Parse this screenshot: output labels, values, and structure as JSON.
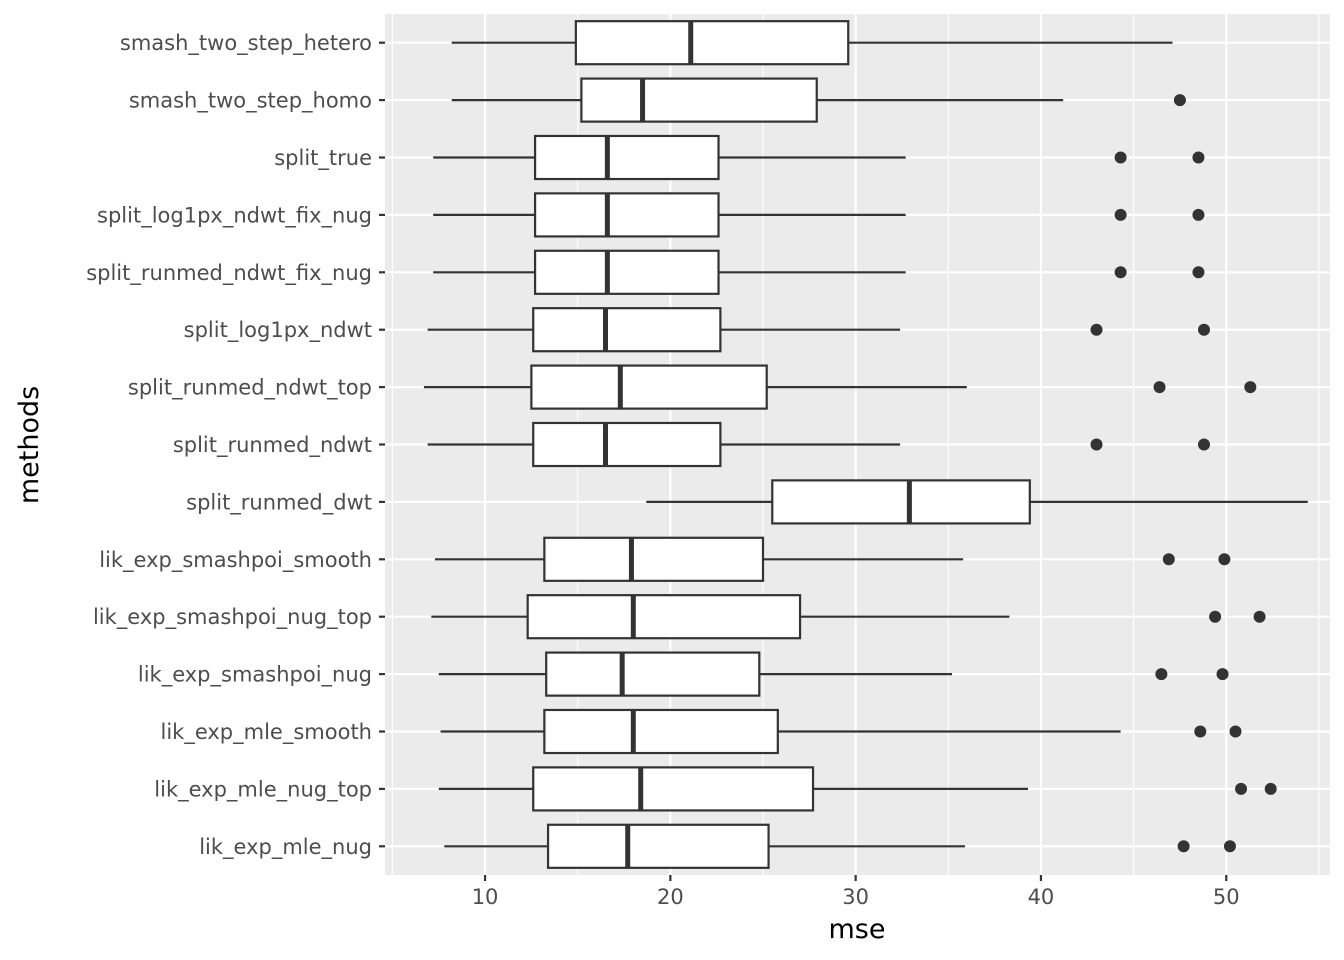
{
  "chart_data": {
    "type": "boxplot",
    "orientation": "horizontal",
    "title": "",
    "xlabel": "mse",
    "ylabel": "methods",
    "xlim": [
      4.6,
      55.6
    ],
    "x_ticks": [
      10,
      20,
      30,
      40,
      50
    ],
    "x_tick_labels": [
      "10",
      "20",
      "30",
      "40",
      "50"
    ],
    "grid": true,
    "legend": "none",
    "series": [
      {
        "name": "smash_two_step_hetero",
        "min": 8.2,
        "q1": 14.9,
        "median": 21.1,
        "q3": 29.6,
        "max": 47.1,
        "outliers": []
      },
      {
        "name": "smash_two_step_homo",
        "min": 8.2,
        "q1": 15.2,
        "median": 18.5,
        "q3": 27.9,
        "max": 41.2,
        "outliers": [
          47.5
        ]
      },
      {
        "name": "split_true",
        "min": 7.2,
        "q1": 12.7,
        "median": 16.6,
        "q3": 22.6,
        "max": 32.7,
        "outliers": [
          44.3,
          48.5
        ]
      },
      {
        "name": "split_log1px_ndwt_fix_nug",
        "min": 7.2,
        "q1": 12.7,
        "median": 16.6,
        "q3": 22.6,
        "max": 32.7,
        "outliers": [
          44.3,
          48.5
        ]
      },
      {
        "name": "split_runmed_ndwt_fix_nug",
        "min": 7.2,
        "q1": 12.7,
        "median": 16.6,
        "q3": 22.6,
        "max": 32.7,
        "outliers": [
          44.3,
          48.5
        ]
      },
      {
        "name": "split_log1px_ndwt",
        "min": 6.9,
        "q1": 12.6,
        "median": 16.5,
        "q3": 22.7,
        "max": 32.4,
        "outliers": [
          43.0,
          48.8
        ]
      },
      {
        "name": "split_runmed_ndwt_top",
        "min": 6.7,
        "q1": 12.5,
        "median": 17.3,
        "q3": 25.2,
        "max": 36.0,
        "outliers": [
          46.4,
          51.3
        ]
      },
      {
        "name": "split_runmed_ndwt",
        "min": 6.9,
        "q1": 12.6,
        "median": 16.5,
        "q3": 22.7,
        "max": 32.4,
        "outliers": [
          43.0,
          48.8
        ]
      },
      {
        "name": "split_runmed_dwt",
        "min": 18.7,
        "q1": 25.5,
        "median": 32.9,
        "q3": 39.4,
        "max": 54.4,
        "outliers": []
      },
      {
        "name": "lik_exp_smashpoi_smooth",
        "min": 7.3,
        "q1": 13.2,
        "median": 17.9,
        "q3": 25.0,
        "max": 35.8,
        "outliers": [
          46.9,
          49.9
        ]
      },
      {
        "name": "lik_exp_smashpoi_nug_top",
        "min": 7.1,
        "q1": 12.3,
        "median": 18.0,
        "q3": 27.0,
        "max": 38.3,
        "outliers": [
          49.4,
          51.8
        ]
      },
      {
        "name": "lik_exp_smashpoi_nug",
        "min": 7.5,
        "q1": 13.3,
        "median": 17.4,
        "q3": 24.8,
        "max": 35.2,
        "outliers": [
          46.5,
          49.8
        ]
      },
      {
        "name": "lik_exp_mle_smooth",
        "min": 7.6,
        "q1": 13.2,
        "median": 18.0,
        "q3": 25.8,
        "max": 44.3,
        "outliers": [
          48.6,
          50.5
        ]
      },
      {
        "name": "lik_exp_mle_nug_top",
        "min": 7.5,
        "q1": 12.6,
        "median": 18.4,
        "q3": 27.7,
        "max": 39.3,
        "outliers": [
          50.8,
          52.4
        ]
      },
      {
        "name": "lik_exp_mle_nug",
        "min": 7.8,
        "q1": 13.4,
        "median": 17.7,
        "q3": 25.3,
        "max": 35.9,
        "outliers": [
          47.7,
          50.2
        ]
      }
    ]
  }
}
